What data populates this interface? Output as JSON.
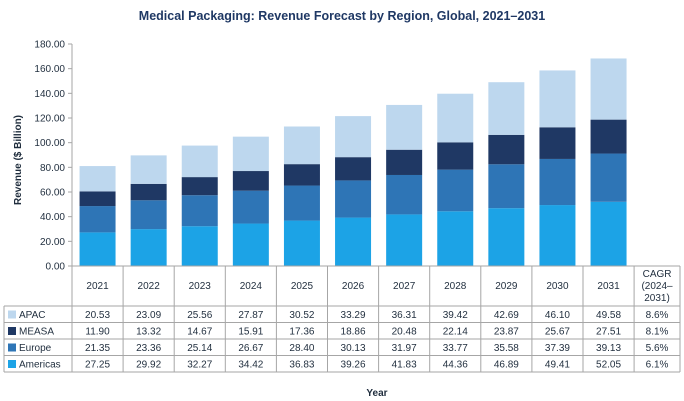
{
  "chart_data": {
    "type": "bar",
    "stacked": true,
    "title": "Medical Packaging: Revenue Forecast by Region, Global, 2021–2031",
    "xlabel": "Year",
    "ylabel": "Revenue ($ Billion)",
    "ylim": [
      0,
      180
    ],
    "yticks": [
      "0.00",
      "20.00",
      "40.00",
      "60.00",
      "80.00",
      "100.00",
      "120.00",
      "140.00",
      "160.00",
      "180.00"
    ],
    "grid": false,
    "categories": [
      "2021",
      "2022",
      "2023",
      "2024",
      "2025",
      "2026",
      "2027",
      "2028",
      "2029",
      "2030",
      "2031"
    ],
    "cagr_header": [
      "CAGR",
      "(2024–",
      "2031)"
    ],
    "series": [
      {
        "name": "APAC",
        "color": "#bdd7ee",
        "values": [
          20.53,
          23.09,
          25.56,
          27.87,
          30.52,
          33.29,
          36.31,
          39.42,
          42.69,
          46.1,
          49.58
        ],
        "labels": [
          "20.53",
          "23.09",
          "25.56",
          "27.87",
          "30.52",
          "33.29",
          "36.31",
          "39.42",
          "42.69",
          "46.10",
          "49.58"
        ],
        "cagr": "8.6%"
      },
      {
        "name": "MEASA",
        "color": "#1f3864",
        "values": [
          11.9,
          13.32,
          14.67,
          15.91,
          17.36,
          18.86,
          20.48,
          22.14,
          23.87,
          25.67,
          27.51
        ],
        "labels": [
          "11.90",
          "13.32",
          "14.67",
          "15.91",
          "17.36",
          "18.86",
          "20.48",
          "22.14",
          "23.87",
          "25.67",
          "27.51"
        ],
        "cagr": "8.1%"
      },
      {
        "name": "Europe",
        "color": "#2e75b6",
        "values": [
          21.35,
          23.36,
          25.14,
          26.67,
          28.4,
          30.13,
          31.97,
          33.77,
          35.58,
          37.39,
          39.13
        ],
        "labels": [
          "21.35",
          "23.36",
          "25.14",
          "26.67",
          "28.40",
          "30.13",
          "31.97",
          "33.77",
          "35.58",
          "37.39",
          "39.13"
        ],
        "cagr": "5.6%"
      },
      {
        "name": "Americas",
        "color": "#1ca3e6",
        "values": [
          27.25,
          29.92,
          32.27,
          34.42,
          36.83,
          39.26,
          41.83,
          44.36,
          46.89,
          49.41,
          52.05
        ],
        "labels": [
          "27.25",
          "29.92",
          "32.27",
          "34.42",
          "36.83",
          "39.26",
          "41.83",
          "44.36",
          "46.89",
          "49.41",
          "52.05"
        ],
        "cagr": "6.1%"
      }
    ]
  }
}
